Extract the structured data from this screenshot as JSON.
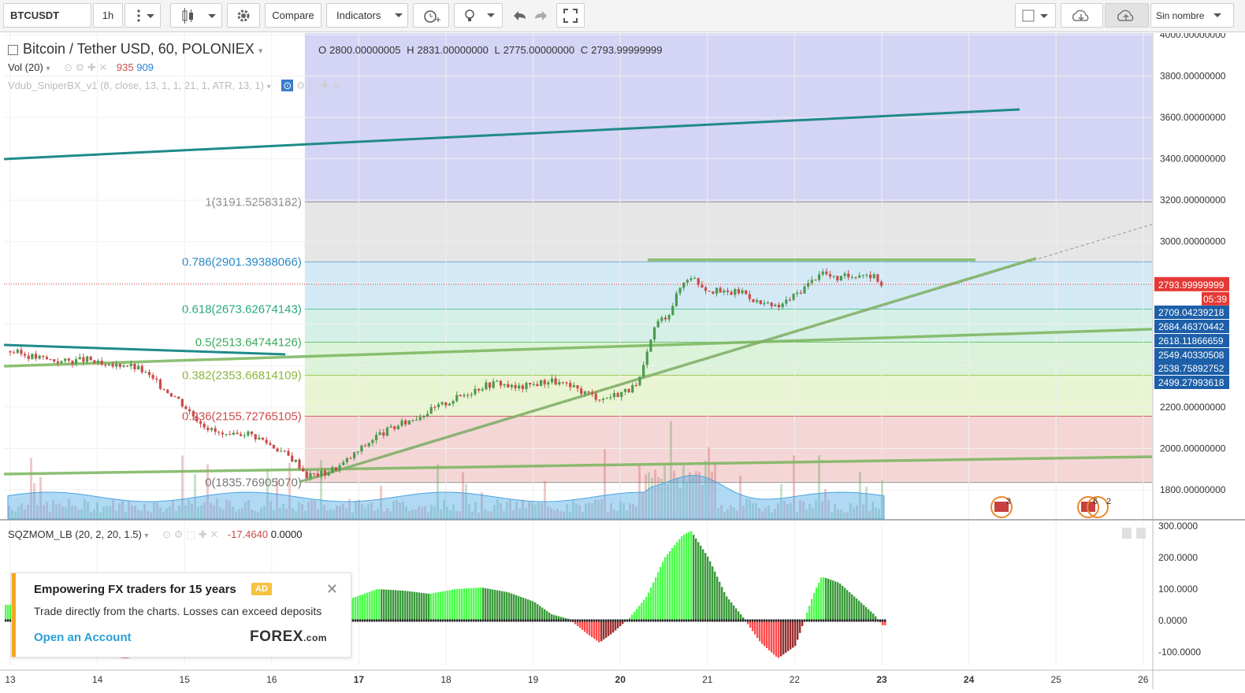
{
  "toolbar": {
    "symbol": "BTCUSDT",
    "interval": "1h",
    "compare_label": "Compare",
    "indicators_label": "Indicators",
    "layout_name": "Sin nombre"
  },
  "legend": {
    "title": "Bitcoin / Tether USD, 60, POLONIEX",
    "open_label": "O",
    "open": "2800.00000005",
    "high_label": "H",
    "high": "2831.00000000",
    "low_label": "L",
    "low": "2775.00000000",
    "close_label": "C",
    "close": "2793.99999999",
    "vol_label": "Vol (20)",
    "vol_value_1": "935",
    "vol_value_2": "909",
    "indicator_label": "Vdub_SniperBX_v1 (8, close, 13, 1, 1, 21, 1, ATR, 13, 1)",
    "sqz_label": "SQZMOM_LB (20, 2, 20, 1.5)",
    "sqz_value_1": "-17.4640",
    "sqz_value_2": "0.0000"
  },
  "colors": {
    "up": "#4c9a4f",
    "down": "#cc4b4b",
    "fib_top": "#d4d4f5",
    "fib_1": "#e6e6e6",
    "fib_786": "#d3eaf6",
    "fib_618": "#d5f0e6",
    "fib_5": "#dbf3d8",
    "fib_382": "#e9f5d2",
    "fib_236": "#f5d6d6",
    "trend_dark": "#1f8a8a",
    "trend_light": "#7ab55c",
    "accent": "#e53935"
  },
  "chart_data": {
    "type": "candlestick",
    "price_axis": {
      "min": 1700,
      "max": 4000,
      "ticks": [
        "4000.00000000",
        "3800.00000000",
        "3600.00000000",
        "3400.00000000",
        "3200.00000000",
        "3000.00000000",
        "2200.00000000",
        "2000.00000000",
        "1800.00000000"
      ]
    },
    "date_ticks": [
      "13",
      "14",
      "15",
      "16",
      "17",
      "18",
      "19",
      "20",
      "21",
      "22",
      "23",
      "24",
      "25",
      "26"
    ],
    "current_price": "2793.99999999",
    "countdown": "05:39",
    "price_labels": [
      "2709.04239218",
      "2684.46370442",
      "2618.11866659",
      "2549.40330508",
      "2538.75892752",
      "2499.27993618"
    ],
    "fib_levels": [
      {
        "label": "1(3191.52583182)",
        "value": 3191.52583182
      },
      {
        "label": "0.786(2901.39388066)",
        "value": 2901.39388066
      },
      {
        "label": "0.618(2673.62674143)",
        "value": 2673.62674143
      },
      {
        "label": "0.5(2513.64744126)",
        "value": 2513.64744126
      },
      {
        "label": "0.382(2353.66814109)",
        "value": 2353.66814109
      },
      {
        "label": "0.236(2155.72765105)",
        "value": 2155.72765105
      },
      {
        "label": "0(1835.76905070)",
        "value": 1835.7690507
      }
    ],
    "close_path": [
      [
        13.0,
        2470
      ],
      [
        13.3,
        2440
      ],
      [
        13.6,
        2420
      ],
      [
        13.9,
        2430
      ],
      [
        14.1,
        2390
      ],
      [
        14.3,
        2410
      ],
      [
        14.5,
        2380
      ],
      [
        14.7,
        2310
      ],
      [
        14.9,
        2250
      ],
      [
        15.1,
        2160
      ],
      [
        15.3,
        2090
      ],
      [
        15.5,
        2050
      ],
      [
        15.7,
        2080
      ],
      [
        15.9,
        2040
      ],
      [
        16.1,
        1990
      ],
      [
        16.3,
        1930
      ],
      [
        16.4,
        1870
      ],
      [
        16.6,
        1880
      ],
      [
        16.8,
        1920
      ],
      [
        17.0,
        1990
      ],
      [
        17.2,
        2060
      ],
      [
        17.4,
        2100
      ],
      [
        17.6,
        2140
      ],
      [
        17.8,
        2180
      ],
      [
        18.0,
        2220
      ],
      [
        18.2,
        2260
      ],
      [
        18.4,
        2300
      ],
      [
        18.6,
        2320
      ],
      [
        18.8,
        2290
      ],
      [
        19.0,
        2310
      ],
      [
        19.2,
        2330
      ],
      [
        19.4,
        2300
      ],
      [
        19.6,
        2270
      ],
      [
        19.8,
        2240
      ],
      [
        20.0,
        2270
      ],
      [
        20.2,
        2300
      ],
      [
        20.3,
        2440
      ],
      [
        20.4,
        2600
      ],
      [
        20.55,
        2650
      ],
      [
        20.7,
        2790
      ],
      [
        20.8,
        2840
      ],
      [
        20.9,
        2800
      ],
      [
        21.0,
        2770
      ],
      [
        21.2,
        2750
      ],
      [
        21.4,
        2760
      ],
      [
        21.6,
        2700
      ],
      [
        21.8,
        2680
      ],
      [
        22.0,
        2740
      ],
      [
        22.2,
        2810
      ],
      [
        22.3,
        2860
      ],
      [
        22.45,
        2820
      ],
      [
        22.6,
        2830
      ],
      [
        22.8,
        2850
      ],
      [
        22.95,
        2820
      ],
      [
        23.0,
        2794
      ]
    ],
    "squeeze_momentum_axis": {
      "ticks": [
        "300.0000",
        "200.0000",
        "100.0000",
        "0.0000",
        "-100.0000"
      ]
    },
    "squeeze_momentum": [
      [
        13.0,
        50
      ],
      [
        13.2,
        40
      ],
      [
        13.4,
        -20
      ],
      [
        13.6,
        -60
      ],
      [
        13.8,
        -90
      ],
      [
        14.0,
        -110
      ],
      [
        14.3,
        -120
      ],
      [
        14.6,
        -110
      ],
      [
        15.0,
        -100
      ],
      [
        15.3,
        -110
      ],
      [
        15.6,
        -100
      ],
      [
        16.0,
        -80
      ],
      [
        16.3,
        -40
      ],
      [
        16.6,
        10
      ],
      [
        16.9,
        70
      ],
      [
        17.2,
        100
      ],
      [
        17.5,
        95
      ],
      [
        17.8,
        85
      ],
      [
        18.1,
        100
      ],
      [
        18.4,
        105
      ],
      [
        18.7,
        90
      ],
      [
        19.0,
        60
      ],
      [
        19.2,
        20
      ],
      [
        19.4,
        5
      ],
      [
        19.6,
        -40
      ],
      [
        19.75,
        -70
      ],
      [
        19.9,
        -40
      ],
      [
        20.1,
        10
      ],
      [
        20.3,
        80
      ],
      [
        20.5,
        200
      ],
      [
        20.7,
        270
      ],
      [
        20.8,
        285
      ],
      [
        21.0,
        200
      ],
      [
        21.2,
        80
      ],
      [
        21.4,
        10
      ],
      [
        21.6,
        -70
      ],
      [
        21.8,
        -120
      ],
      [
        22.0,
        -80
      ],
      [
        22.1,
        0
      ],
      [
        22.2,
        80
      ],
      [
        22.3,
        140
      ],
      [
        22.5,
        120
      ],
      [
        22.7,
        70
      ],
      [
        22.9,
        20
      ],
      [
        23.0,
        -15
      ]
    ]
  },
  "markers": {
    "event_a": "3",
    "event_b": "6",
    "event_c": "2"
  },
  "ad": {
    "title": "Empowering FX traders for 15 years",
    "badge": "AD",
    "body": "Trade directly from the charts. Losses can exceed deposits",
    "link": "Open an Account",
    "logo_main": "FOREX",
    "logo_suffix": ".com"
  }
}
